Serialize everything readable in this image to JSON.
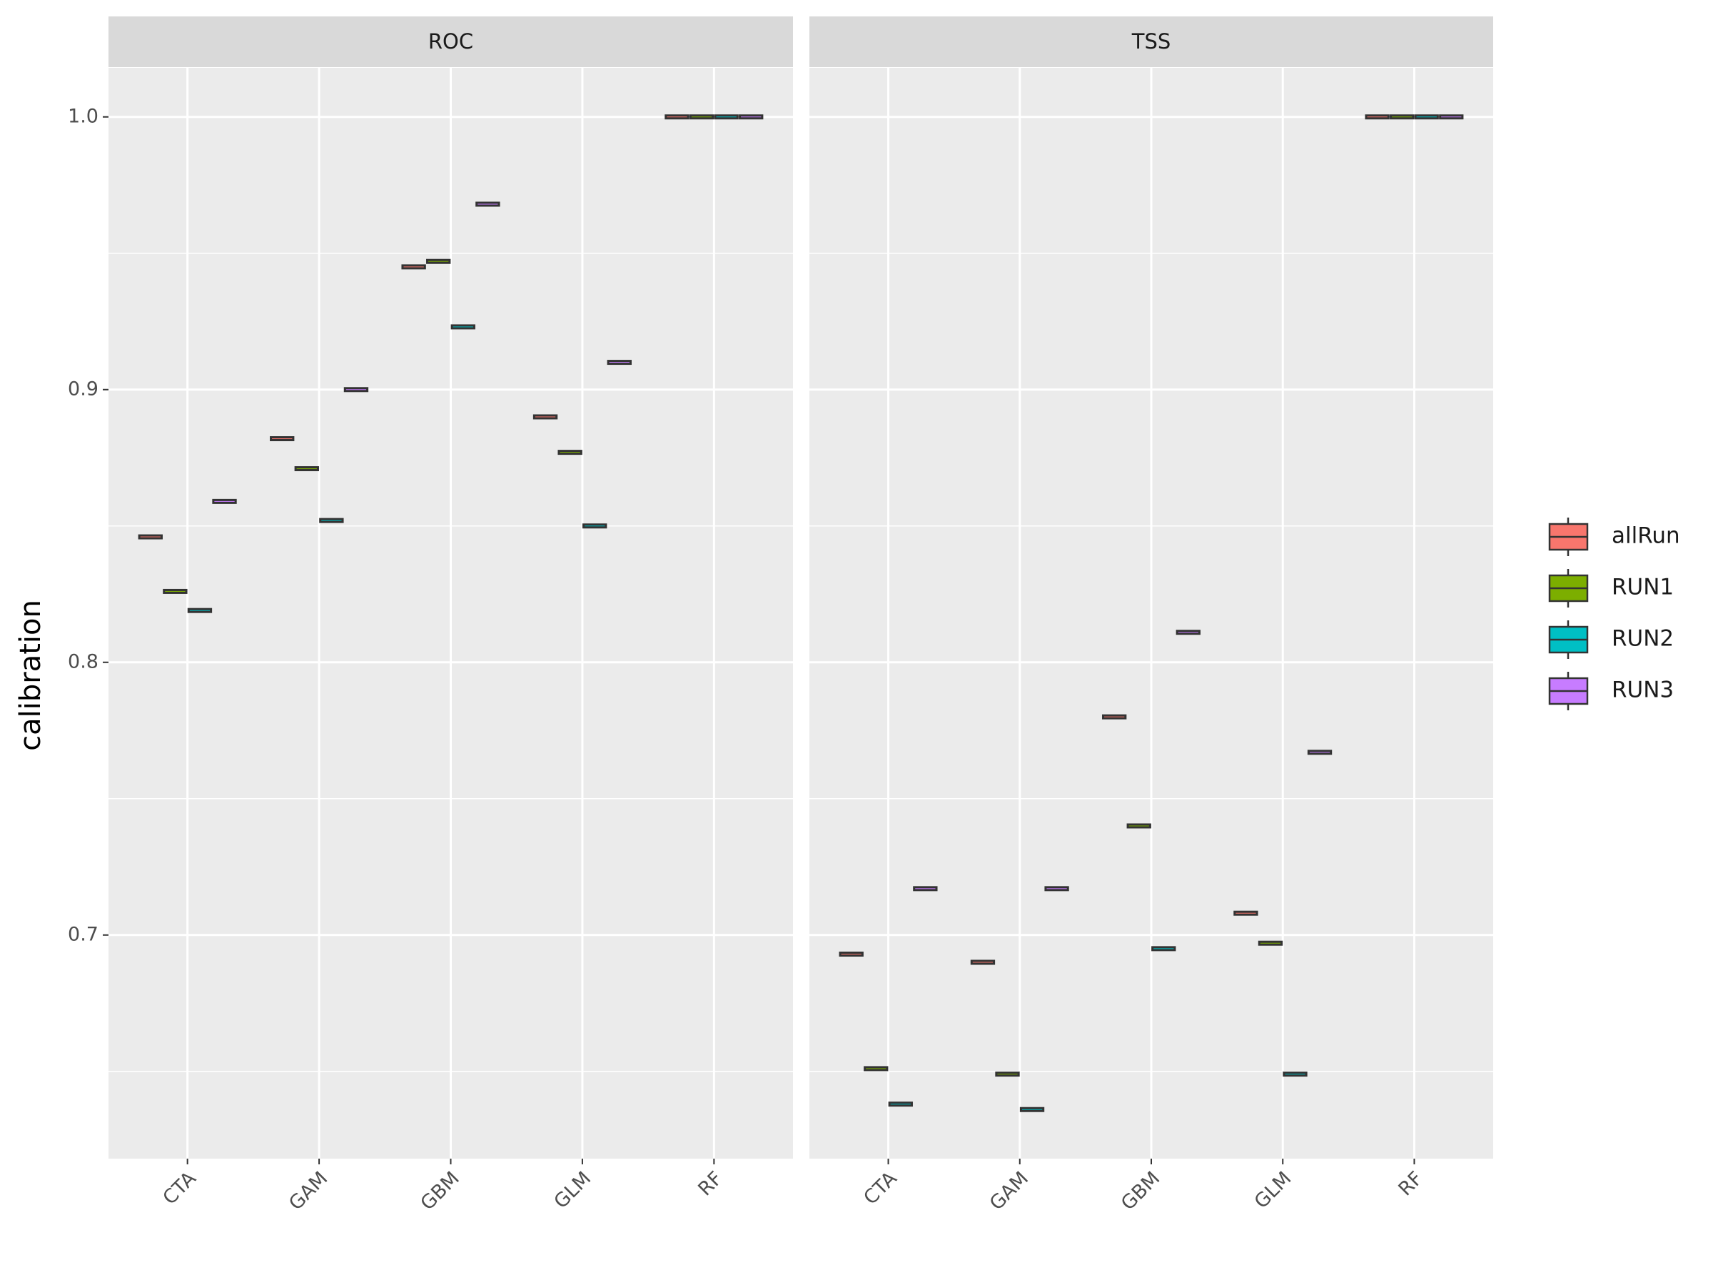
{
  "chart_data": {
    "type": "box",
    "y_label": "calibration",
    "facets": [
      "ROC",
      "TSS"
    ],
    "categories": [
      "CTA",
      "GAM",
      "GBM",
      "GLM",
      "RF"
    ],
    "series": [
      {
        "name": "allRun",
        "color": "#F8766D",
        "values": [
          [
            0.846,
            0.882,
            0.945,
            0.89,
            1.0
          ],
          [
            0.693,
            0.69,
            0.78,
            0.708,
            1.0
          ]
        ]
      },
      {
        "name": "RUN1",
        "color": "#7CAE00",
        "values": [
          [
            0.826,
            0.871,
            0.947,
            0.877,
            1.0
          ],
          [
            0.651,
            0.649,
            0.74,
            0.697,
            1.0
          ]
        ]
      },
      {
        "name": "RUN2",
        "color": "#00BFC4",
        "values": [
          [
            0.819,
            0.852,
            0.923,
            0.85,
            1.0
          ],
          [
            0.638,
            0.636,
            0.695,
            0.649,
            1.0
          ]
        ]
      },
      {
        "name": "RUN3",
        "color": "#C77CFF",
        "values": [
          [
            0.859,
            0.9,
            0.968,
            0.91,
            1.0
          ],
          [
            0.717,
            0.717,
            0.811,
            0.767,
            1.0
          ]
        ]
      }
    ],
    "ylim": [
      0.618,
      1.018
    ],
    "yticks": [
      {
        "value": 0.7,
        "label": "0.7"
      },
      0.8,
      0.9,
      {
        "value": 1.0,
        "label": "1.0"
      }
    ],
    "minor_yticks": [
      0.65,
      0.75,
      0.85,
      0.95
    ],
    "grid": true
  }
}
